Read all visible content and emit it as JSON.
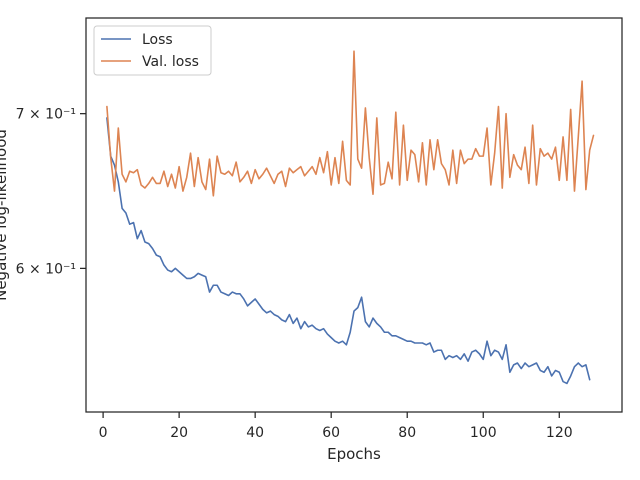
{
  "chart_data": {
    "type": "line",
    "title": "",
    "xlabel": "Epochs",
    "ylabel": "Negative log-likelihood",
    "xlim": [
      -4.5,
      136.5
    ],
    "ylim": [
      0.52,
      0.77
    ],
    "yscale": "log",
    "grid": false,
    "legend_position": "top-left",
    "x_ticks": [
      0,
      20,
      40,
      60,
      80,
      100,
      120
    ],
    "x_tick_labels": [
      "0",
      "20",
      "40",
      "60",
      "80",
      "100",
      "120"
    ],
    "y_ticks": [
      0.6,
      0.7
    ],
    "y_tick_labels": [
      "6 × 10⁻¹",
      "7 × 10⁻¹"
    ],
    "x_start": 1,
    "series": [
      {
        "name": "Loss",
        "color": "#4c72b0",
        "values": [
          0.697,
          0.671,
          0.665,
          0.654,
          0.637,
          0.634,
          0.627,
          0.628,
          0.618,
          0.623,
          0.616,
          0.615,
          0.612,
          0.608,
          0.607,
          0.602,
          0.599,
          0.598,
          0.6,
          0.598,
          0.596,
          0.594,
          0.594,
          0.595,
          0.597,
          0.596,
          0.595,
          0.586,
          0.59,
          0.59,
          0.586,
          0.585,
          0.584,
          0.586,
          0.585,
          0.585,
          0.582,
          0.578,
          0.58,
          0.582,
          0.579,
          0.576,
          0.574,
          0.575,
          0.573,
          0.572,
          0.57,
          0.569,
          0.573,
          0.568,
          0.571,
          0.565,
          0.569,
          0.566,
          0.567,
          0.565,
          0.564,
          0.565,
          0.562,
          0.56,
          0.558,
          0.557,
          0.558,
          0.556,
          0.563,
          0.575,
          0.577,
          0.583,
          0.569,
          0.566,
          0.571,
          0.568,
          0.566,
          0.563,
          0.563,
          0.561,
          0.561,
          0.56,
          0.559,
          0.558,
          0.558,
          0.557,
          0.557,
          0.557,
          0.556,
          0.557,
          0.552,
          0.553,
          0.553,
          0.548,
          0.55,
          0.549,
          0.55,
          0.548,
          0.551,
          0.547,
          0.552,
          0.553,
          0.551,
          0.548,
          0.558,
          0.55,
          0.553,
          0.552,
          0.548,
          0.556,
          0.541,
          0.545,
          0.546,
          0.543,
          0.546,
          0.544,
          0.545,
          0.546,
          0.542,
          0.541,
          0.544,
          0.539,
          0.542,
          0.541,
          0.536,
          0.535,
          0.539,
          0.544,
          0.546,
          0.544,
          0.545,
          0.537
        ]
      },
      {
        "name": "Val. loss",
        "color": "#dd8452",
        "values": [
          0.705,
          0.67,
          0.648,
          0.69,
          0.659,
          0.654,
          0.661,
          0.66,
          0.662,
          0.652,
          0.65,
          0.653,
          0.657,
          0.653,
          0.653,
          0.661,
          0.651,
          0.659,
          0.65,
          0.664,
          0.648,
          0.657,
          0.673,
          0.651,
          0.67,
          0.654,
          0.649,
          0.669,
          0.645,
          0.671,
          0.66,
          0.659,
          0.661,
          0.658,
          0.667,
          0.654,
          0.657,
          0.661,
          0.653,
          0.662,
          0.656,
          0.659,
          0.663,
          0.658,
          0.653,
          0.659,
          0.661,
          0.651,
          0.663,
          0.66,
          0.662,
          0.664,
          0.658,
          0.661,
          0.664,
          0.659,
          0.67,
          0.66,
          0.674,
          0.652,
          0.67,
          0.653,
          0.681,
          0.655,
          0.652,
          0.745,
          0.669,
          0.663,
          0.704,
          0.67,
          0.646,
          0.697,
          0.652,
          0.653,
          0.667,
          0.656,
          0.701,
          0.652,
          0.692,
          0.655,
          0.675,
          0.672,
          0.654,
          0.68,
          0.652,
          0.682,
          0.662,
          0.682,
          0.666,
          0.662,
          0.652,
          0.675,
          0.653,
          0.675,
          0.666,
          0.669,
          0.669,
          0.676,
          0.671,
          0.671,
          0.69,
          0.652,
          0.673,
          0.705,
          0.65,
          0.7,
          0.657,
          0.672,
          0.665,
          0.662,
          0.677,
          0.653,
          0.692,
          0.652,
          0.676,
          0.671,
          0.673,
          0.669,
          0.677,
          0.655,
          0.684,
          0.655,
          0.703,
          0.648,
          0.684,
          0.723,
          0.649,
          0.675,
          0.685
        ]
      }
    ]
  }
}
